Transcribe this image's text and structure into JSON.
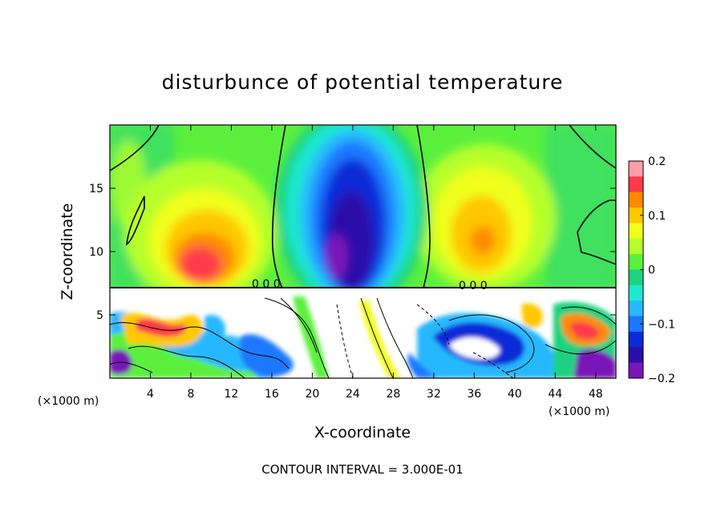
{
  "chart_data": {
    "type": "heatmap",
    "title": "disturbunce of potential temperature",
    "xlabel": "X-coordinate",
    "ylabel": "Z-coordinate",
    "x_unit": "(×1000 m)",
    "x_unit_right": "(×1000 m)",
    "xlim": [
      0,
      50
    ],
    "ylim": [
      0,
      20
    ],
    "x_ticks": [
      4,
      8,
      12,
      16,
      20,
      24,
      28,
      32,
      36,
      40,
      44,
      48
    ],
    "y_ticks": [
      5,
      10,
      15
    ],
    "colorbar": {
      "range": [
        -0.2,
        0.2
      ],
      "ticks": [
        {
          "value": 0.2,
          "label": "0.2"
        },
        {
          "value": 0.1,
          "label": "0.1"
        },
        {
          "value": 0,
          "label": "0"
        },
        {
          "value": -0.1,
          "label": "−0.1"
        },
        {
          "value": -0.2,
          "label": "−0.2"
        }
      ],
      "colors": [
        "#ff9ea6",
        "#ff3a4a",
        "#ff8a00",
        "#ffc800",
        "#f0ff1c",
        "#b6ff2a",
        "#5cf03e",
        "#1ed27f",
        "#1ee8d0",
        "#28b8ff",
        "#1a78ff",
        "#0a2cd8",
        "#2a10a8",
        "#7a16b8"
      ]
    },
    "features": [
      {
        "name": "negative plume aloft",
        "x_center": 24,
        "x_halfwidth": 4.5,
        "z_min": 7.5,
        "z_top": 19,
        "value": -0.2
      },
      {
        "name": "warm anomaly left",
        "x_center": 9,
        "x_halfwidth": 3.5,
        "z_center": 10,
        "value": 0.15
      },
      {
        "name": "warm anomaly right",
        "x_center": 36.5,
        "x_halfwidth": 3.5,
        "z_center": 11.5,
        "value": 0.12
      },
      {
        "name": "turbulent boundary layer",
        "z_min": 0,
        "z_max": 7.5,
        "value_range": [
          -0.2,
          0.2
        ]
      }
    ],
    "annotation": "CONTOUR INTERVAL = 3.000E-01"
  }
}
